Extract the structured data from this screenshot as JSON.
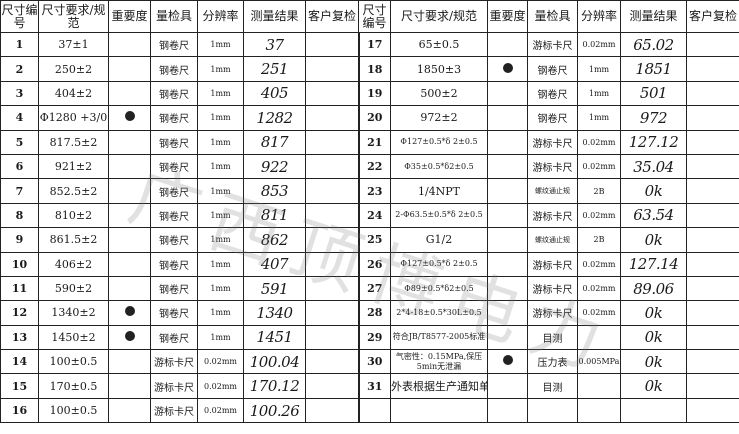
{
  "headers": [
    "尺寸编号",
    "尺寸要求/规范",
    "重要度",
    "量检具",
    "分辨率",
    "测量结果",
    "客户复检"
  ],
  "watermark": "广西顶博电力",
  "left_rows": [
    {
      "no": "1",
      "spec": "37±1",
      "key": false,
      "tool": "钢卷尺",
      "res": "1mm",
      "meas": "37"
    },
    {
      "no": "2",
      "spec": "250±2",
      "key": false,
      "tool": "钢卷尺",
      "res": "1mm",
      "meas": "251"
    },
    {
      "no": "3",
      "spec": "404±2",
      "key": false,
      "tool": "钢卷尺",
      "res": "1mm",
      "meas": "405"
    },
    {
      "no": "4",
      "spec": "Φ1280 +3/0",
      "key": true,
      "tool": "钢卷尺",
      "res": "1mm",
      "meas": "1282"
    },
    {
      "no": "5",
      "spec": "817.5±2",
      "key": false,
      "tool": "钢卷尺",
      "res": "1mm",
      "meas": "817"
    },
    {
      "no": "6",
      "spec": "921±2",
      "key": false,
      "tool": "钢卷尺",
      "res": "1mm",
      "meas": "922"
    },
    {
      "no": "7",
      "spec": "852.5±2",
      "key": false,
      "tool": "钢卷尺",
      "res": "1mm",
      "meas": "853"
    },
    {
      "no": "8",
      "spec": "810±2",
      "key": false,
      "tool": "钢卷尺",
      "res": "1mm",
      "meas": "811"
    },
    {
      "no": "9",
      "spec": "861.5±2",
      "key": false,
      "tool": "钢卷尺",
      "res": "1mm",
      "meas": "862"
    },
    {
      "no": "10",
      "spec": "406±2",
      "key": false,
      "tool": "钢卷尺",
      "res": "1mm",
      "meas": "407"
    },
    {
      "no": "11",
      "spec": "590±2",
      "key": false,
      "tool": "钢卷尺",
      "res": "1mm",
      "meas": "591"
    },
    {
      "no": "12",
      "spec": "1340±2",
      "key": true,
      "tool": "钢卷尺",
      "res": "1mm",
      "meas": "1340"
    },
    {
      "no": "13",
      "spec": "1450±2",
      "key": true,
      "tool": "钢卷尺",
      "res": "1mm",
      "meas": "1451"
    },
    {
      "no": "14",
      "spec": "100±0.5",
      "key": false,
      "tool": "游标卡尺",
      "res": "0.02mm",
      "meas": "100.04"
    },
    {
      "no": "15",
      "spec": "170±0.5",
      "key": false,
      "tool": "游标卡尺",
      "res": "0.02mm",
      "meas": "170.12"
    },
    {
      "no": "16",
      "spec": "100±0.5",
      "key": false,
      "tool": "游标卡尺",
      "res": "0.02mm",
      "meas": "100.26"
    }
  ],
  "right_rows": [
    {
      "no": "17",
      "spec": "65±0.5",
      "key": false,
      "tool": "游标卡尺",
      "res": "0.02mm",
      "meas": "65.02"
    },
    {
      "no": "18",
      "spec": "1850±3",
      "key": true,
      "tool": "钢卷尺",
      "res": "1mm",
      "meas": "1851"
    },
    {
      "no": "19",
      "spec": "500±2",
      "key": false,
      "tool": "钢卷尺",
      "res": "1mm",
      "meas": "501"
    },
    {
      "no": "20",
      "spec": "972±2",
      "key": false,
      "tool": "钢卷尺",
      "res": "1mm",
      "meas": "972"
    },
    {
      "no": "21",
      "spec": "Φ127±0.5*δ 2±0.5",
      "key": false,
      "tool": "游标卡尺",
      "res": "0.02mm",
      "meas": "127.12"
    },
    {
      "no": "22",
      "spec": "Φ35±0.5*δ2±0.5",
      "key": false,
      "tool": "游标卡尺",
      "res": "0.02mm",
      "meas": "35.04"
    },
    {
      "no": "23",
      "spec": "1/4NPT",
      "key": false,
      "tool": "螺纹通止规",
      "res": "2B",
      "meas": "0k"
    },
    {
      "no": "24",
      "spec": "2-Φ63.5±0.5*δ 2±0.5",
      "key": false,
      "tool": "游标卡尺",
      "res": "0.02mm",
      "meas": "63.54"
    },
    {
      "no": "25",
      "spec": "G1/2",
      "key": false,
      "tool": "螺纹通止规",
      "res": "2B",
      "meas": "0k"
    },
    {
      "no": "26",
      "spec": "Φ127±0.5*δ 2±0.5",
      "key": false,
      "tool": "游标卡尺",
      "res": "0.02mm",
      "meas": "127.14"
    },
    {
      "no": "27",
      "spec": "Φ89±0.5*δ2±0.5",
      "key": false,
      "tool": "游标卡尺",
      "res": "0.02mm",
      "meas": "89.06"
    },
    {
      "no": "28",
      "spec": "2*4-18±0.5*30L±0.5",
      "key": false,
      "tool": "游标卡尺",
      "res": "0.02mm",
      "meas": "0k"
    },
    {
      "no": "29",
      "spec": "符合JB/T8577-2005标准",
      "key": false,
      "tool": "目测",
      "res": "",
      "meas": "0k"
    },
    {
      "no": "30",
      "spec": "气密性：0.15MPa,保压5min无泄漏",
      "key": true,
      "tool": "压力表",
      "res": "0.005MPa",
      "meas": "0k"
    },
    {
      "no": "31",
      "spec": "外表根据生产通知单做油漆",
      "key": false,
      "tool": "目测",
      "res": "",
      "meas": "0k"
    },
    {
      "no": "",
      "spec": "",
      "key": false,
      "tool": "",
      "res": "",
      "meas": ""
    }
  ]
}
